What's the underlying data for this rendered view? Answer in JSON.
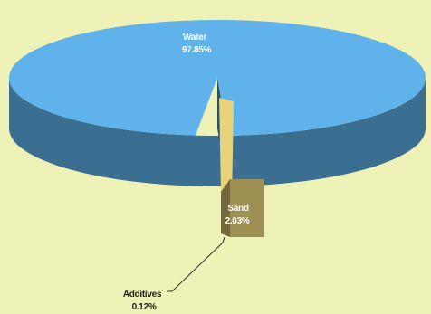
{
  "chart_data": {
    "type": "pie",
    "style": "3d-exploded",
    "categories": [
      "Water",
      "Sand",
      "Additives"
    ],
    "values": [
      97.85,
      2.03,
      0.12
    ],
    "value_labels": [
      "97.85%",
      "2.03%",
      "0.12%"
    ],
    "colors": {
      "Water": "#5fb3ea",
      "Sand": "#e8d27a",
      "Additives": "#b0c070"
    },
    "title": "",
    "legend": "none"
  },
  "page": {
    "background": "#eef2b6"
  }
}
